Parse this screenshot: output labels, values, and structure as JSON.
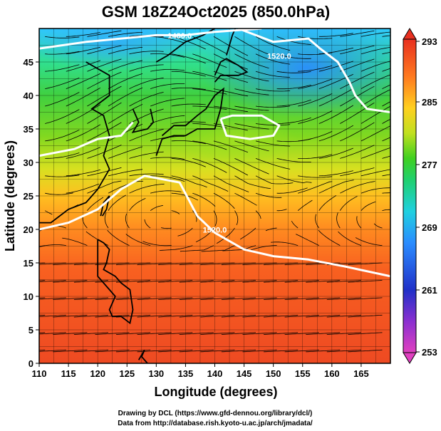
{
  "chart_data": {
    "type": "heatmap",
    "title": "GSM 18Z24Oct2025 (850.0hPa)",
    "xlabel": "Longitude (degrees)",
    "ylabel": "Latitude  (degrees)",
    "xlim": [
      110,
      170
    ],
    "ylim": [
      0,
      50
    ],
    "x_ticks": [
      110,
      115,
      120,
      125,
      130,
      135,
      140,
      145,
      150,
      155,
      160,
      165
    ],
    "y_ticks": [
      0,
      5,
      10,
      15,
      20,
      25,
      30,
      35,
      40,
      45
    ],
    "grid": true,
    "colorbar": {
      "label_ticks": [
        293,
        285,
        277,
        269,
        261,
        253
      ],
      "min": 253,
      "max": 293
    },
    "contour_labels": [
      {
        "text": "1480.0",
        "lon": 134,
        "lat": 48.5
      },
      {
        "text": "1520.0",
        "lon": 151,
        "lat": 45.5
      },
      {
        "text": "1520.0",
        "lon": 140,
        "lat": 19.5
      }
    ],
    "contour_lines": [
      {
        "value": 1480,
        "points": [
          [
            110,
            47
          ],
          [
            114,
            47.5
          ],
          [
            118,
            48
          ],
          [
            124,
            48.5
          ],
          [
            130,
            49
          ],
          [
            135,
            49
          ],
          [
            140,
            49.5
          ],
          [
            148,
            50
          ]
        ]
      },
      {
        "value": 1520,
        "points": [
          [
            144,
            50
          ],
          [
            150,
            48
          ],
          [
            156,
            48.5
          ],
          [
            158,
            47
          ],
          [
            161,
            45
          ],
          [
            163,
            42
          ],
          [
            164,
            40
          ],
          [
            166,
            38
          ],
          [
            170,
            37.5
          ]
        ]
      },
      {
        "value": 1520,
        "points": [
          [
            110,
            31
          ],
          [
            116,
            32
          ],
          [
            120,
            33.5
          ],
          [
            124,
            34
          ],
          [
            126,
            36
          ]
        ]
      },
      {
        "value": 1520,
        "points": [
          [
            141,
            36.5
          ],
          [
            143,
            37
          ],
          [
            148,
            37
          ],
          [
            151,
            35.5
          ],
          [
            150,
            34
          ],
          [
            146,
            33.5
          ],
          [
            142,
            34
          ],
          [
            141,
            36.5
          ]
        ]
      },
      {
        "value": 1520,
        "points": [
          [
            110,
            20
          ],
          [
            115,
            21
          ],
          [
            120,
            23
          ],
          [
            124,
            26
          ],
          [
            128,
            28
          ],
          [
            134,
            27
          ],
          [
            137,
            22
          ],
          [
            140,
            19.5
          ],
          [
            145,
            17
          ],
          [
            150,
            16
          ],
          [
            156,
            15.5
          ],
          [
            162,
            14.5
          ],
          [
            170,
            13
          ]
        ]
      }
    ],
    "field_description": "temperature (K) colored field with wind streamlines"
  },
  "credits": {
    "line1": "Drawing by DCL (https://www.gfd-dennou.org/library/dcl/)",
    "line2": "Data from http://database.rish.kyoto-u.ac.jp/arch/jmadata/"
  }
}
